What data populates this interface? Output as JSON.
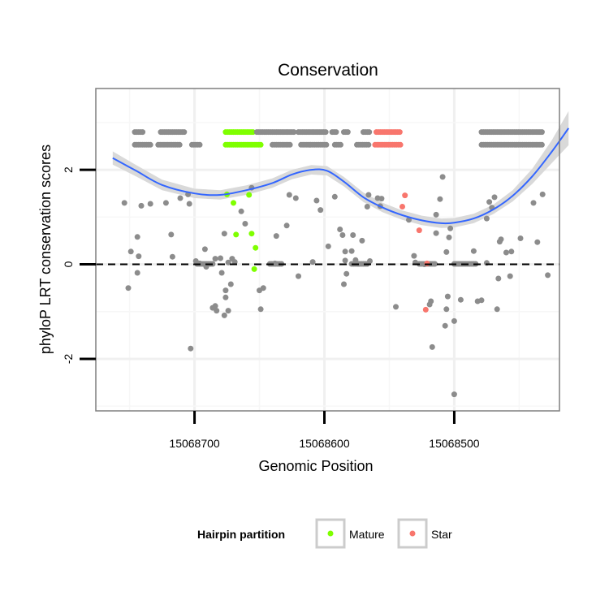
{
  "chart_data": {
    "type": "scatter",
    "title": "Conservation",
    "xlabel": "Genomic Position",
    "ylabel": "phyloP LRT conservation scores",
    "x_reversed": true,
    "xlim": [
      15068776,
      15068419
    ],
    "ylim": [
      -3.1,
      3.72
    ],
    "x_ticks": [
      15068700,
      15068600,
      15068500
    ],
    "x_tick_labels": [
      "15068700",
      "15068600",
      "15068500"
    ],
    "y_ticks": [
      -2,
      0,
      2
    ],
    "y_tick_labels": [
      "-2",
      "0",
      "2"
    ],
    "grid": true,
    "reference_line": {
      "y": 0,
      "style": "dashed"
    },
    "legend": {
      "title": "Hairpin partition",
      "position": "bottom",
      "entries": [
        {
          "label": "Mature",
          "color": "#7FFF00"
        },
        {
          "label": "Star",
          "color": "#F8766D"
        }
      ]
    },
    "colors": {
      "Mature": "#7FFF00",
      "Star": "#F8766D",
      "Other": "#8C8C8C",
      "smooth": "#3366FF",
      "ribbon": "#D9D9D9"
    },
    "tracks": {
      "upper": {
        "y": 2.8,
        "segments": [
          {
            "from": 15068746,
            "to": 15068740,
            "series": "Other"
          },
          {
            "from": 15068726,
            "to": 15068707,
            "series": "Other"
          },
          {
            "from": 15068676,
            "to": 15068655,
            "series": "Mature"
          },
          {
            "from": 15068652,
            "to": 15068623,
            "series": "Other"
          },
          {
            "from": 15068620,
            "to": 15068599,
            "series": "Other"
          },
          {
            "from": 15068594,
            "to": 15068590,
            "series": "Other"
          },
          {
            "from": 15068585,
            "to": 15068582,
            "series": "Other"
          },
          {
            "from": 15068570,
            "to": 15068565,
            "series": "Other"
          },
          {
            "from": 15068560,
            "to": 15068541,
            "series": "Star"
          },
          {
            "from": 15068479,
            "to": 15068432,
            "series": "Other"
          }
        ]
      },
      "lower": {
        "y": 2.53,
        "segments": [
          {
            "from": 15068746,
            "to": 15068733,
            "series": "Other"
          },
          {
            "from": 15068728,
            "to": 15068711,
            "series": "Other"
          },
          {
            "from": 15068702,
            "to": 15068696,
            "series": "Other"
          },
          {
            "from": 15068676,
            "to": 15068649,
            "series": "Mature"
          },
          {
            "from": 15068640,
            "to": 15068626,
            "series": "Other"
          },
          {
            "from": 15068618,
            "to": 15068598,
            "series": "Other"
          },
          {
            "from": 15068592,
            "to": 15068587,
            "series": "Other"
          },
          {
            "from": 15068575,
            "to": 15068565,
            "series": "Other"
          },
          {
            "from": 15068561,
            "to": 15068541,
            "series": "Star"
          },
          {
            "from": 15068479,
            "to": 15068432,
            "series": "Other"
          }
        ]
      }
    },
    "zero_clusters": [
      {
        "from": 15068698,
        "to": 15068686,
        "series": "Other"
      },
      {
        "from": 15068642,
        "to": 15068633,
        "series": "Other"
      },
      {
        "from": 15068579,
        "to": 15068567,
        "series": "Other"
      },
      {
        "from": 15068527,
        "to": 15068515,
        "series": "Other"
      },
      {
        "from": 15068500,
        "to": 15068483,
        "series": "Other"
      }
    ],
    "series": [
      {
        "name": "Mature",
        "points": [
          [
            15068675,
            1.48
          ],
          [
            15068670,
            1.3
          ],
          [
            15068668,
            0.63
          ],
          [
            15068658,
            1.47
          ],
          [
            15068656,
            0.65
          ],
          [
            15068653,
            0.35
          ],
          [
            15068654,
            -0.1
          ]
        ]
      },
      {
        "name": "Star",
        "points": [
          [
            15068538,
            1.46
          ],
          [
            15068540,
            1.22
          ],
          [
            15068527,
            0.72
          ],
          [
            15068521,
            0.02
          ],
          [
            15068522,
            -0.96
          ]
        ]
      },
      {
        "name": "Other",
        "points": [
          [
            15068754,
            1.3
          ],
          [
            15068751,
            -0.5
          ],
          [
            15068749,
            0.27
          ],
          [
            15068744,
            0.58
          ],
          [
            15068744,
            -0.18
          ],
          [
            15068743,
            0.17
          ],
          [
            15068741,
            1.24
          ],
          [
            15068734,
            1.28
          ],
          [
            15068722,
            1.3
          ],
          [
            15068718,
            0.63
          ],
          [
            15068717,
            0.16
          ],
          [
            15068711,
            1.4
          ],
          [
            15068705,
            1.48
          ],
          [
            15068704,
            1.28
          ],
          [
            15068703,
            -1.78
          ],
          [
            15068699,
            0.07
          ],
          [
            15068696,
            0.02
          ],
          [
            15068692,
            0.32
          ],
          [
            15068691,
            -0.05
          ],
          [
            15068686,
            -0.92
          ],
          [
            15068684,
            -0.88
          ],
          [
            15068684,
            0.12
          ],
          [
            15068683,
            -0.98
          ],
          [
            15068680,
            0.13
          ],
          [
            15068679,
            -0.18
          ],
          [
            15068677,
            -1.08
          ],
          [
            15068677,
            0.65
          ],
          [
            15068676,
            -0.55
          ],
          [
            15068676,
            -0.7
          ],
          [
            15068674,
            -0.98
          ],
          [
            15068674,
            0.04
          ],
          [
            15068672,
            -0.42
          ],
          [
            15068671,
            0.12
          ],
          [
            15068669,
            0.05
          ],
          [
            15068664,
            1.12
          ],
          [
            15068661,
            0.86
          ],
          [
            15068656,
            1.62
          ],
          [
            15068650,
            -0.55
          ],
          [
            15068649,
            -0.95
          ],
          [
            15068647,
            -0.5
          ],
          [
            15068637,
            0.6
          ],
          [
            15068638,
            0.02
          ],
          [
            15068629,
            0.82
          ],
          [
            15068627,
            1.47
          ],
          [
            15068622,
            1.4
          ],
          [
            15068620,
            -0.25
          ],
          [
            15068609,
            0.05
          ],
          [
            15068606,
            1.35
          ],
          [
            15068603,
            1.15
          ],
          [
            15068597,
            0.38
          ],
          [
            15068592,
            1.43
          ],
          [
            15068588,
            0.74
          ],
          [
            15068586,
            0.62
          ],
          [
            15068584,
            0.08
          ],
          [
            15068583,
            -0.2
          ],
          [
            15068585,
            -0.42
          ],
          [
            15068584,
            0.27
          ],
          [
            15068579,
            0.28
          ],
          [
            15068578,
            0.62
          ],
          [
            15068576,
            0.09
          ],
          [
            15068574,
            0.01
          ],
          [
            15068571,
            0.5
          ],
          [
            15068567,
            1.22
          ],
          [
            15068566,
            1.47
          ],
          [
            15068565,
            0.07
          ],
          [
            15068559,
            1.4
          ],
          [
            15068557,
            1.23
          ],
          [
            15068556,
            1.39
          ],
          [
            15068545,
            -0.9
          ],
          [
            15068535,
            0.94
          ],
          [
            15068531,
            0.18
          ],
          [
            15068530,
            0.04
          ],
          [
            15068523,
            0.0
          ],
          [
            15068519,
            -0.85
          ],
          [
            15068518,
            -0.78
          ],
          [
            15068517,
            -1.75
          ],
          [
            15068514,
            0.66
          ],
          [
            15068514,
            1.05
          ],
          [
            15068511,
            1.38
          ],
          [
            15068509,
            1.85
          ],
          [
            15068507,
            -1.3
          ],
          [
            15068506,
            0.26
          ],
          [
            15068506,
            -0.95
          ],
          [
            15068505,
            -0.68
          ],
          [
            15068504,
            0.57
          ],
          [
            15068503,
            0.76
          ],
          [
            15068500,
            -1.2
          ],
          [
            15068500,
            -2.75
          ],
          [
            15068495,
            -0.75
          ],
          [
            15068485,
            0.28
          ],
          [
            15068482,
            -0.78
          ],
          [
            15068479,
            -0.76
          ],
          [
            15068475,
            0.03
          ],
          [
            15068475,
            0.97
          ],
          [
            15068473,
            1.32
          ],
          [
            15068471,
            1.2
          ],
          [
            15068469,
            1.42
          ],
          [
            15068467,
            -0.95
          ],
          [
            15068466,
            -0.3
          ],
          [
            15068465,
            0.48
          ],
          [
            15068464,
            0.53
          ],
          [
            15068460,
            0.25
          ],
          [
            15068457,
            -0.25
          ],
          [
            15068456,
            0.27
          ],
          [
            15068449,
            0.55
          ],
          [
            15068439,
            1.3
          ],
          [
            15068436,
            0.47
          ],
          [
            15068432,
            1.48
          ],
          [
            15068428,
            -0.23
          ]
        ]
      }
    ],
    "smooth": {
      "points": [
        [
          15068763,
          2.25
        ],
        [
          15068745,
          1.98
        ],
        [
          15068725,
          1.68
        ],
        [
          15068700,
          1.5
        ],
        [
          15068680,
          1.47
        ],
        [
          15068660,
          1.57
        ],
        [
          15068640,
          1.72
        ],
        [
          15068625,
          1.9
        ],
        [
          15068610,
          2.0
        ],
        [
          15068598,
          1.98
        ],
        [
          15068585,
          1.75
        ],
        [
          15068570,
          1.42
        ],
        [
          15068555,
          1.2
        ],
        [
          15068540,
          1.04
        ],
        [
          15068525,
          0.93
        ],
        [
          15068510,
          0.87
        ],
        [
          15068500,
          0.88
        ],
        [
          15068485,
          0.97
        ],
        [
          15068470,
          1.16
        ],
        [
          15068455,
          1.45
        ],
        [
          15068440,
          1.86
        ],
        [
          15068425,
          2.38
        ],
        [
          15068412,
          2.88
        ]
      ],
      "band": [
        0.14,
        0.12,
        0.11,
        0.1,
        0.1,
        0.1,
        0.1,
        0.1,
        0.1,
        0.1,
        0.1,
        0.1,
        0.1,
        0.1,
        0.1,
        0.1,
        0.1,
        0.1,
        0.1,
        0.12,
        0.16,
        0.24,
        0.36
      ]
    }
  }
}
